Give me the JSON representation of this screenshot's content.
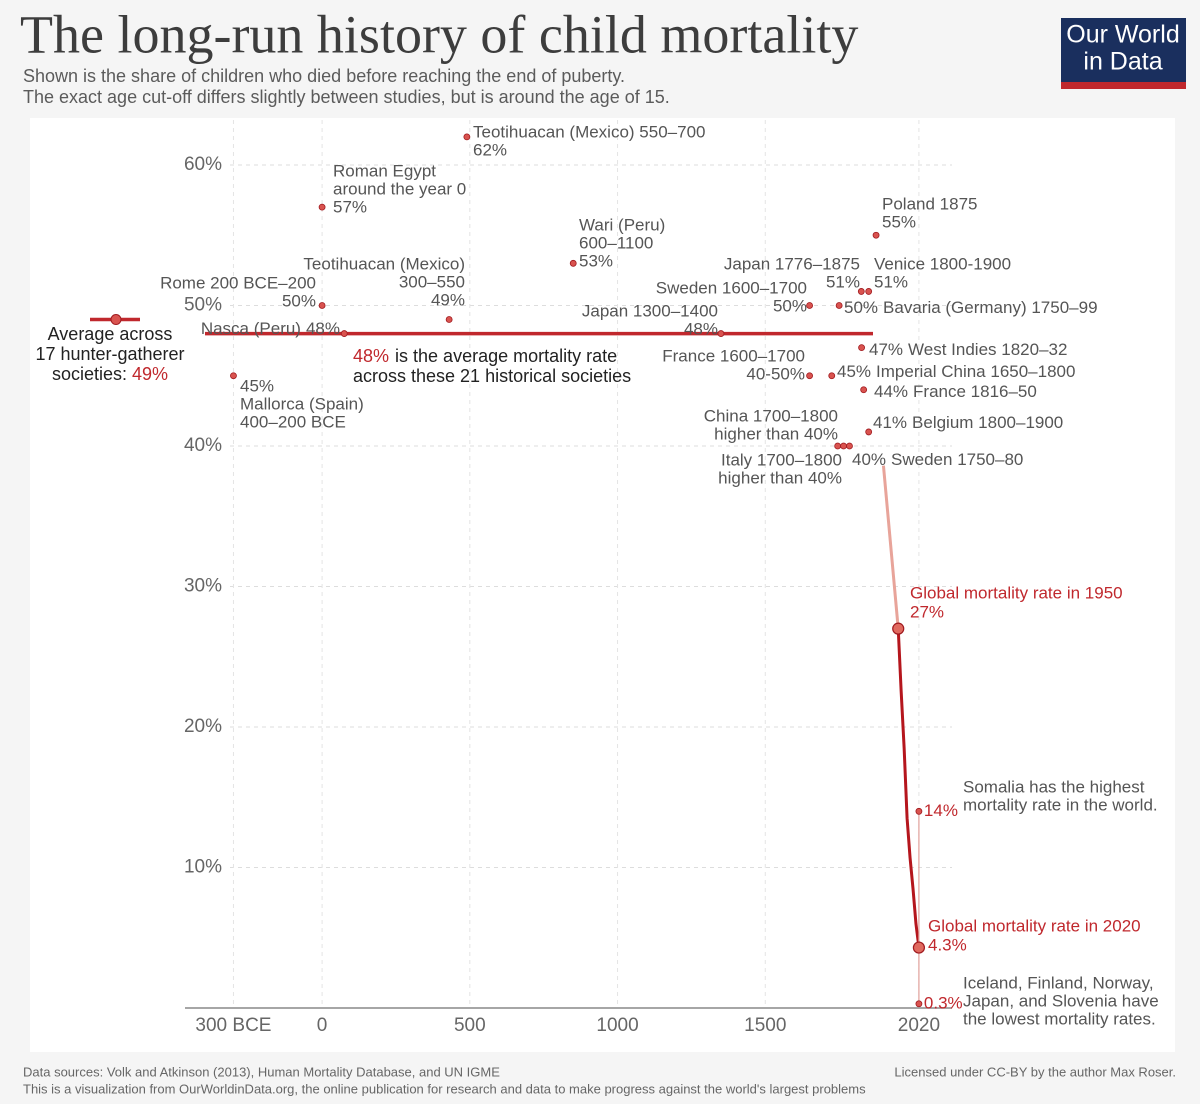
{
  "chart_data": {
    "type": "scatter",
    "title": "The long-run history of child mortality",
    "subtitle": [
      "Shown is the share of children who died before reaching the end of puberty.",
      "The exact age cut-off differs slightly between studies, but is around the age of 15."
    ],
    "logo": [
      "Our World",
      "in Data"
    ],
    "color": "#c0282d",
    "grid": true,
    "xlim": [
      -464,
      2132
    ],
    "ylim": [
      0,
      63.2
    ],
    "xticks": [
      {
        "value": -300,
        "label": "300 BCE"
      },
      0,
      500,
      1000,
      1500,
      2020
    ],
    "yticks": [
      {
        "value": 10,
        "label": "10%"
      },
      {
        "value": 20,
        "label": "20%"
      },
      {
        "value": 30,
        "label": "30%"
      },
      {
        "value": 40,
        "label": "40%"
      },
      {
        "value": 50,
        "label": "50%"
      },
      {
        "value": 60,
        "label": "60%"
      }
    ],
    "points": [
      {
        "name": [
          "Teotihuacan (Mexico) 550–700"
        ],
        "x": 490,
        "value": 62,
        "value_label": "62%"
      },
      {
        "name": [
          "Roman Egypt",
          "around the year 0"
        ],
        "x": 0,
        "value": 57,
        "value_label": "57%"
      },
      {
        "name": [
          "Wari (Peru)",
          "600–1100"
        ],
        "x": 850,
        "value": 53,
        "value_label": "53%"
      },
      {
        "name": [
          "Poland 1875"
        ],
        "x": 1875,
        "value": 55,
        "value_label": "55%"
      },
      {
        "name": [
          "Teotihuacan (Mexico)",
          "300–550"
        ],
        "x": 430,
        "value": 49,
        "value_label": "49%"
      },
      {
        "name": [
          "Rome 200 BCE–200"
        ],
        "x": 0,
        "value": 50,
        "value_label": "50%"
      },
      {
        "name": [
          "Japan 1776–1875"
        ],
        "x": 1825,
        "value": 51,
        "value_label": "51%"
      },
      {
        "name": [
          "Venice 1800-1900"
        ],
        "x": 1850,
        "value": 51,
        "value_label": "51%"
      },
      {
        "name": [
          "Sweden 1600–1700"
        ],
        "x": 1650,
        "value": 50,
        "value_label": "50%"
      },
      {
        "name": [
          "Bavaria (Germany) 1750–99"
        ],
        "x": 1750,
        "value": 50,
        "value_label": "50%"
      },
      {
        "name": [
          "Nasca (Peru)"
        ],
        "x": 75,
        "value": 48,
        "value_label": "48%"
      },
      {
        "name": [
          "Japan 1300–1400"
        ],
        "x": 1350,
        "value": 48,
        "value_label": "48%"
      },
      {
        "name": [
          "France 1600–1700"
        ],
        "x": 1650,
        "value": 45,
        "value_label": "40-50%"
      },
      {
        "name": [
          "Imperial China 1650–1800"
        ],
        "x": 1725,
        "value": 45,
        "value_label": "45%"
      },
      {
        "name": [
          "West Indies 1820–32"
        ],
        "x": 1826,
        "value": 47,
        "value_label": "47%"
      },
      {
        "name": [
          "France 1816–50"
        ],
        "x": 1833,
        "value": 44,
        "value_label": "44%"
      },
      {
        "name": [
          "Belgium 1800–1900"
        ],
        "x": 1850,
        "value": 41,
        "value_label": "41%"
      },
      {
        "name": [
          "China 1700–1800"
        ],
        "x": 1745,
        "value": 40,
        "value_label": "higher than 40%"
      },
      {
        "name": [
          "Italy 1700–1800"
        ],
        "x": 1765,
        "value": 40,
        "value_label": "higher than 40%"
      },
      {
        "name": [
          "Sweden 1750–80"
        ],
        "x": 1785,
        "value": 40,
        "value_label": "40%"
      },
      {
        "name": [
          "Mallorca (Spain)",
          "400–200 BCE"
        ],
        "x": -300,
        "value": 45,
        "value_label": "45%"
      }
    ],
    "average": {
      "value": 48,
      "value_label": "48%",
      "text": [
        "is the average mortality rate",
        "across these 21 historical societies"
      ]
    },
    "hunter_gatherer": {
      "text": [
        "Average across",
        "17 hunter-gatherer",
        "societies:"
      ],
      "value": 49,
      "value_label": "49%"
    },
    "series": [
      {
        "x": [
          1900,
          1950
        ],
        "values": [
          38.6,
          27
        ],
        "color": "#e8a49a"
      },
      {
        "x": [
          1950,
          1960,
          1970,
          1980,
          1990,
          2000,
          2010,
          2020
        ],
        "values": [
          27,
          22.5,
          18.5,
          13.5,
          10.7,
          8.5,
          6,
          4.3
        ],
        "color": "#b5161d"
      }
    ],
    "annotations": [
      {
        "text": "Global mortality rate in 1950",
        "x": 1950,
        "value": 27,
        "value_label": "27%"
      },
      {
        "text": "Global mortality rate in 2020",
        "x": 2020,
        "value": 4.3,
        "value_label": "4.3%"
      }
    ],
    "highest": {
      "text": [
        "Somalia has the highest",
        "mortality rate in the world."
      ],
      "x": 2020,
      "value": 14,
      "value_label": "14%"
    },
    "lowest": {
      "text": [
        "Iceland, Finland, Norway,",
        "Japan, and Slovenia have",
        "the lowest mortality rates."
      ],
      "x": 2020,
      "value": 0.3,
      "value_label": "0.3%"
    },
    "sources": "Data sources: Volk and Atkinson (2013), Human Mortality Database, and UN IGME",
    "footer": "This is a visualization from OurWorldinData.org, the online publication for research and data to make progress against the world's largest problems",
    "license": "Licensed under CC-BY by the author Max Roser."
  }
}
